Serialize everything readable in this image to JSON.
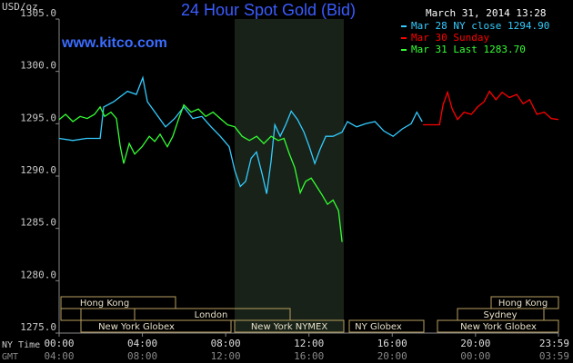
{
  "chart_data": {
    "type": "line",
    "title": "24 Hour Spot Gold (Bid)",
    "subtitle": "www.kitco.com",
    "timestamp": "March 31, 2014 13:28",
    "y_axis_label": "USD/oz",
    "x_axis_label": "NY Time",
    "x2_axis_label": "GMT",
    "xlim": [
      0,
      23.9833
    ],
    "xticks": [
      {
        "value": 0,
        "label": "00:00"
      },
      {
        "value": 4,
        "label": "04:00"
      },
      {
        "value": 8,
        "label": "08:00"
      },
      {
        "value": 12,
        "label": "12:00"
      },
      {
        "value": 16,
        "label": "16:00"
      },
      {
        "value": 20,
        "label": "20:00"
      },
      {
        "value": 23.9833,
        "label": "23:59"
      }
    ],
    "x2tick_labels": [
      "04:00",
      "08:00",
      "12:00",
      "16:00",
      "20:00",
      "00:00",
      "03:59"
    ],
    "ylim": [
      1275,
      1305
    ],
    "yticks": [
      {
        "value": 1275,
        "label": "1275.0"
      },
      {
        "value": 1280,
        "label": "1280.0"
      },
      {
        "value": 1285,
        "label": "1285.0"
      },
      {
        "value": 1290,
        "label": "1290.0"
      },
      {
        "value": 1295,
        "label": "1295.0"
      },
      {
        "value": 1300,
        "label": "1300.0"
      },
      {
        "value": 1305,
        "label": "1305.0"
      }
    ],
    "grid": false,
    "sessions": [
      "Hong Kong",
      "Hong Kong",
      "London",
      "Sydney",
      "New York Globex",
      "New York NYMEX",
      "NY Globex",
      "New York Globex"
    ],
    "series": [
      {
        "name": "Mar 28 NY close 1294.90",
        "color": "#33ccff",
        "x": [
          0,
          0.66,
          1.31,
          1.97,
          2.14,
          2.62,
          3.28,
          3.71,
          4.02,
          4.24,
          4.68,
          5.11,
          5.55,
          5.99,
          6.42,
          6.86,
          7.3,
          7.74,
          8.17,
          8.44,
          8.7,
          8.96,
          9.22,
          9.48,
          9.75,
          9.97,
          10.18,
          10.36,
          10.62,
          10.88,
          11.15,
          11.45,
          11.76,
          12.02,
          12.28,
          12.54,
          12.81,
          13.16,
          13.59,
          13.85,
          14.29,
          14.73,
          15.17,
          15.6,
          16.04,
          16.48,
          16.91,
          17.18,
          17.44
        ],
        "values": [
          1293.6,
          1293.4,
          1293.6,
          1293.6,
          1296.6,
          1297.1,
          1298.1,
          1297.8,
          1299.4,
          1297.1,
          1295.9,
          1294.7,
          1295.5,
          1296.6,
          1295.5,
          1295.7,
          1294.7,
          1293.8,
          1292.8,
          1290.5,
          1289.0,
          1289.5,
          1291.7,
          1292.3,
          1290.2,
          1288.3,
          1291.4,
          1294.9,
          1293.8,
          1294.9,
          1296.2,
          1295.4,
          1294.2,
          1292.8,
          1291.2,
          1292.6,
          1293.8,
          1293.8,
          1294.2,
          1295.2,
          1294.7,
          1295.0,
          1295.2,
          1294.3,
          1293.8,
          1294.5,
          1295.0,
          1296.1,
          1295.2
        ]
      },
      {
        "name": "Mar 30 Sunday",
        "color": "#ff0000",
        "x": [
          17.48,
          18.27,
          18.44,
          18.66,
          18.88,
          19.14,
          19.45,
          19.8,
          20.1,
          20.41,
          20.67,
          20.98,
          21.28,
          21.63,
          21.98,
          22.29,
          22.6,
          22.95,
          23.3,
          23.64,
          23.98
        ],
        "values": [
          1294.9,
          1294.9,
          1296.8,
          1298.0,
          1296.4,
          1295.4,
          1296.1,
          1295.9,
          1296.6,
          1297.1,
          1298.1,
          1297.3,
          1298.0,
          1297.5,
          1297.8,
          1296.9,
          1297.3,
          1295.9,
          1296.1,
          1295.5,
          1295.4
        ]
      },
      {
        "name": "Mar 31 Last 1283.70",
        "color": "#33ff33",
        "x": [
          0,
          0.31,
          0.66,
          1.01,
          1.35,
          1.7,
          1.97,
          2.19,
          2.49,
          2.75,
          2.93,
          3.1,
          3.37,
          3.63,
          3.98,
          4.33,
          4.59,
          4.85,
          5.2,
          5.46,
          5.73,
          5.99,
          6.34,
          6.69,
          7.04,
          7.39,
          7.74,
          8.09,
          8.44,
          8.79,
          9.14,
          9.49,
          9.83,
          10.18,
          10.53,
          10.8,
          11.06,
          11.32,
          11.58,
          11.84,
          12.11,
          12.37,
          12.63,
          12.89,
          13.16,
          13.42,
          13.59
        ],
        "values": [
          1295.4,
          1295.9,
          1295.2,
          1295.7,
          1295.5,
          1295.9,
          1296.6,
          1295.7,
          1296.1,
          1295.5,
          1292.9,
          1291.2,
          1293.1,
          1292.1,
          1292.8,
          1293.8,
          1293.3,
          1294.0,
          1292.8,
          1293.8,
          1295.4,
          1296.8,
          1296.1,
          1296.4,
          1295.7,
          1296.1,
          1295.5,
          1294.9,
          1294.7,
          1293.8,
          1293.4,
          1293.8,
          1293.1,
          1293.8,
          1293.4,
          1293.6,
          1292.1,
          1290.8,
          1288.4,
          1289.5,
          1289.8,
          1289.0,
          1288.2,
          1287.3,
          1287.7,
          1286.7,
          1283.7
        ]
      }
    ]
  }
}
